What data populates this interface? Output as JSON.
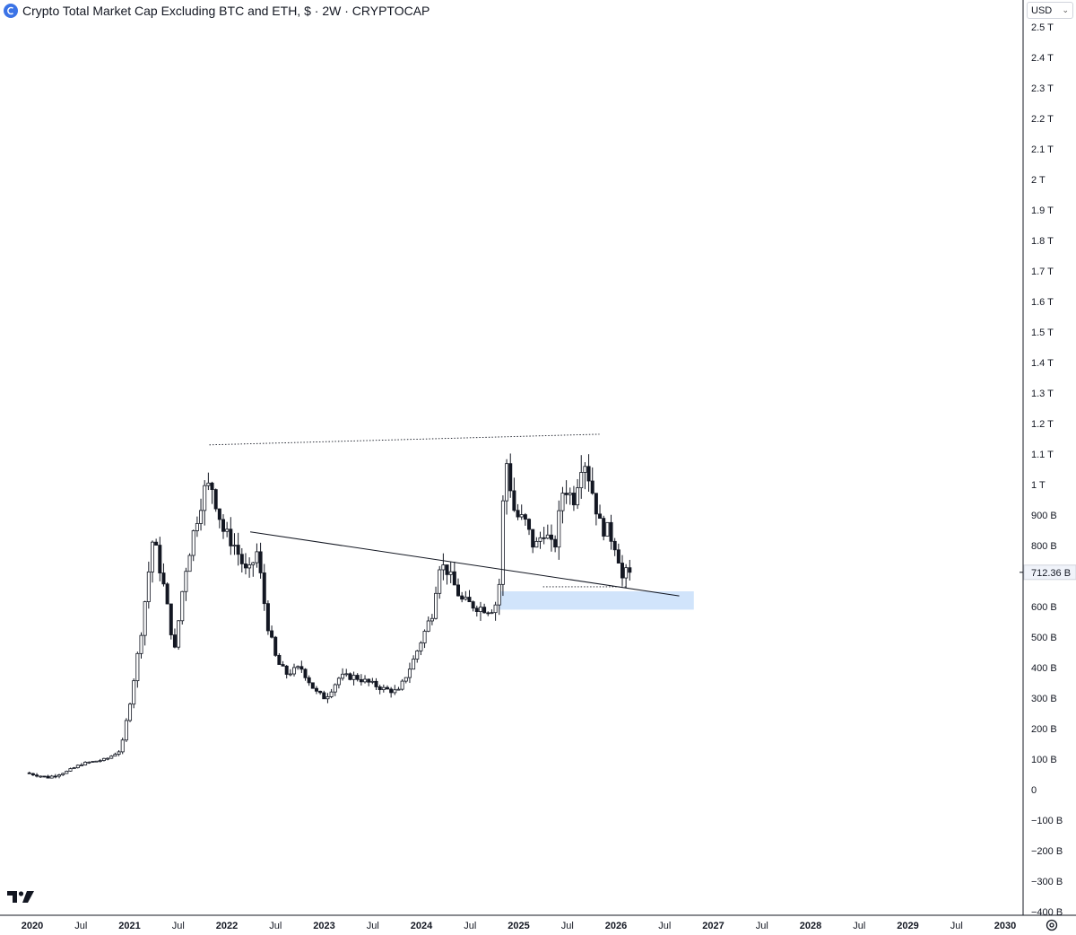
{
  "header": {
    "title": "Crypto Total Market Cap Excluding BTC and ETH, $ · 2W · CRYPTOCAP",
    "currency": "USD"
  },
  "price_label": "712.36 B",
  "colors": {
    "accent": "#3b73e6",
    "zone": "#cfe3fb",
    "candle": "#131722",
    "price_tag": "#f0f3fa"
  },
  "icons": {
    "logo": "cryptocap-logo-icon",
    "tradingview": "tradingview-logo-icon",
    "settings": "gear-icon",
    "dropdown": "chevron-down-icon"
  },
  "chart_data": {
    "type": "candlestick",
    "title": "Crypto Total Market Cap Excluding BTC and ETH, $ · 2W · CRYPTOCAP",
    "x_ticks": [
      "2020",
      "Jul",
      "2021",
      "Jul",
      "2022",
      "Jul",
      "2023",
      "Jul",
      "2024",
      "Jul",
      "2025",
      "Jul",
      "2026",
      "Jul",
      "2027",
      "Jul",
      "2028",
      "Jul",
      "2029",
      "Jul",
      "2030"
    ],
    "x_tick_dates": [
      2020.0,
      2020.5,
      2021.0,
      2021.5,
      2022.0,
      2022.5,
      2023.0,
      2023.5,
      2024.0,
      2024.5,
      2025.0,
      2025.5,
      2026.0,
      2026.5,
      2027.0,
      2027.5,
      2028.0,
      2028.5,
      2029.0,
      2029.5,
      2030.0
    ],
    "y_ticks": [
      -400,
      -300,
      -200,
      -100,
      0,
      100,
      200,
      300,
      400,
      500,
      600,
      700,
      800,
      900,
      1000,
      1100,
      1200,
      1300,
      1400,
      1500,
      1600,
      1700,
      1800,
      1900,
      2000,
      2100,
      2200,
      2300,
      2400,
      2500
    ],
    "y_tick_labels": [
      "−400 B",
      "−300 B",
      "−200 B",
      "−100 B",
      "0",
      "100 B",
      "200 B",
      "300 B",
      "400 B",
      "500 B",
      "600 B",
      "",
      "800 B",
      "900 B",
      "1 T",
      "1.1 T",
      "1.2 T",
      "1.3 T",
      "1.4 T",
      "1.5 T",
      "1.6 T",
      "1.7 T",
      "1.8 T",
      "1.9 T",
      "2 T",
      "2.1 T",
      "2.2 T",
      "2.3 T",
      "2.4 T",
      "2.5 T"
    ],
    "y_unit": "billion USD",
    "ylim": [
      -400,
      2500
    ],
    "xlim": [
      2019.97,
      2030.0
    ],
    "last_price": 712.36,
    "ohlc_anchors": [
      [
        2019.97,
        55
      ],
      [
        2020.2,
        40
      ],
      [
        2020.4,
        60
      ],
      [
        2020.55,
        85
      ],
      [
        2020.8,
        100
      ],
      [
        2020.95,
        130
      ],
      [
        2021.05,
        300
      ],
      [
        2021.15,
        500
      ],
      [
        2021.28,
        830
      ],
      [
        2021.4,
        650
      ],
      [
        2021.5,
        450
      ],
      [
        2021.6,
        700
      ],
      [
        2021.7,
        850
      ],
      [
        2021.8,
        980
      ],
      [
        2021.88,
        1000
      ],
      [
        2022.0,
        850
      ],
      [
        2022.12,
        800
      ],
      [
        2022.25,
        700
      ],
      [
        2022.35,
        780
      ],
      [
        2022.45,
        550
      ],
      [
        2022.55,
        420
      ],
      [
        2022.65,
        380
      ],
      [
        2022.8,
        400
      ],
      [
        2022.95,
        320
      ],
      [
        2023.05,
        300
      ],
      [
        2023.2,
        370
      ],
      [
        2023.35,
        370
      ],
      [
        2023.5,
        350
      ],
      [
        2023.65,
        330
      ],
      [
        2023.8,
        320
      ],
      [
        2023.95,
        420
      ],
      [
        2024.05,
        500
      ],
      [
        2024.15,
        580
      ],
      [
        2024.22,
        740
      ],
      [
        2024.3,
        720
      ],
      [
        2024.45,
        620
      ],
      [
        2024.6,
        600
      ],
      [
        2024.75,
        590
      ],
      [
        2024.83,
        620
      ],
      [
        2024.9,
        1100
      ],
      [
        2025.0,
        900
      ],
      [
        2025.1,
        880
      ],
      [
        2025.2,
        790
      ],
      [
        2025.3,
        850
      ],
      [
        2025.4,
        780
      ],
      [
        2025.5,
        1000
      ],
      [
        2025.6,
        950
      ],
      [
        2025.7,
        1100
      ],
      [
        2025.78,
        1000
      ],
      [
        2025.88,
        860
      ],
      [
        2025.95,
        850
      ],
      [
        2026.05,
        790
      ],
      [
        2026.1,
        690
      ],
      [
        2026.15,
        712.36
      ]
    ],
    "trendlines": [
      {
        "style": "dotted",
        "from": [
          2021.82,
          1130
        ],
        "to": [
          2025.83,
          1165
        ]
      },
      {
        "style": "solid",
        "from": [
          2022.24,
          845
        ],
        "to": [
          2026.65,
          635
        ]
      },
      {
        "style": "dotted",
        "from": [
          2025.25,
          665
        ],
        "to": [
          2026.1,
          665
        ]
      }
    ],
    "zones": [
      {
        "from": [
          2024.8,
          590
        ],
        "to": [
          2026.8,
          650
        ]
      }
    ]
  }
}
